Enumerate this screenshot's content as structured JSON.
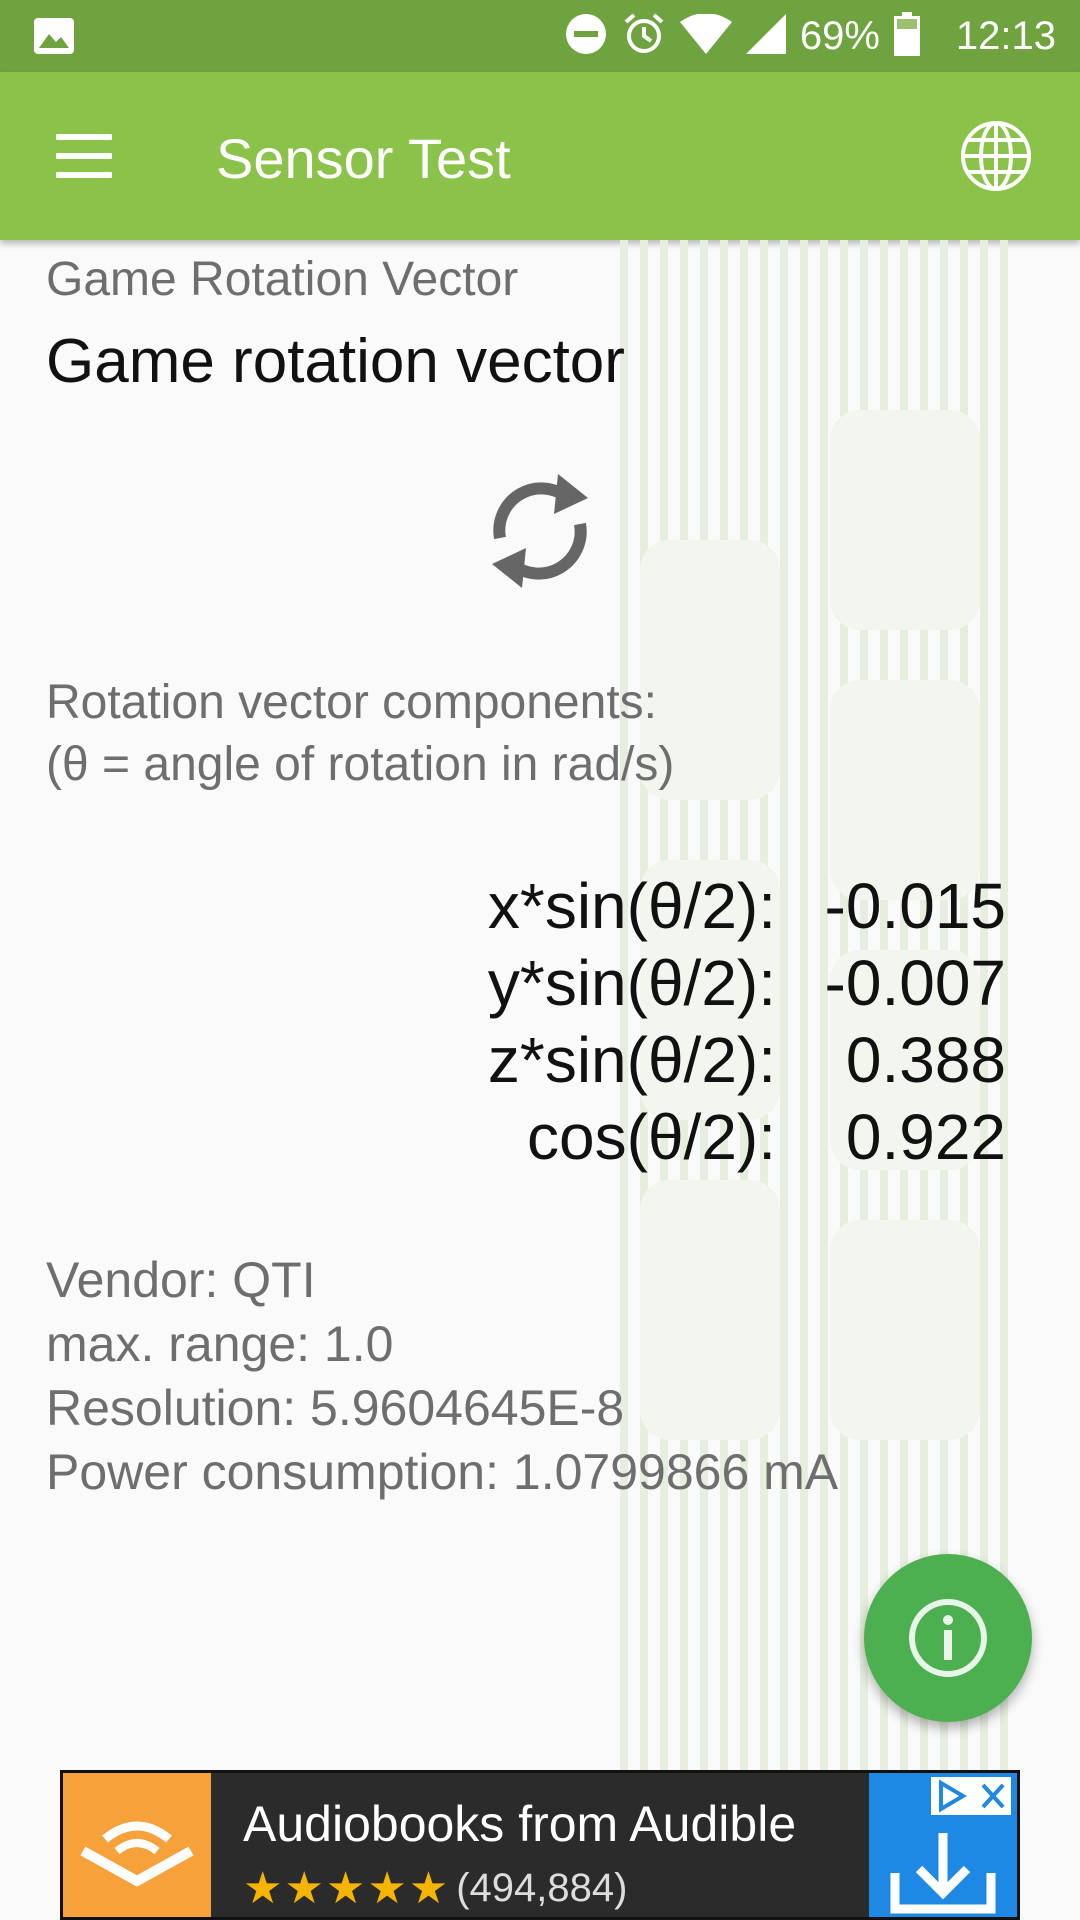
{
  "status_bar": {
    "battery_percent": "69%",
    "time": "12:13",
    "icons": [
      "image-icon",
      "do-not-disturb-icon",
      "alarm-icon",
      "wifi-icon",
      "signal-icon",
      "battery-icon"
    ]
  },
  "app_bar": {
    "title": "Sensor Test",
    "menu_icon": "hamburger-menu-icon",
    "action_icon": "globe-icon"
  },
  "sensor": {
    "type": "Game Rotation Vector",
    "name": "Game rotation vector",
    "description_line1": "Rotation vector components:",
    "description_line2": "(θ = angle of rotation in rad/s)",
    "components": [
      {
        "label": "x*sin(θ/2):",
        "value": "-0.015"
      },
      {
        "label": "y*sin(θ/2):",
        "value": "-0.007"
      },
      {
        "label": "z*sin(θ/2):",
        "value": "0.388"
      },
      {
        "label": "cos(θ/2):",
        "value": "0.922"
      }
    ],
    "info": {
      "vendor": "Vendor:  QTI",
      "max_range": "max. range:  1.0",
      "resolution": "Resolution:  5.9604645E-8",
      "power": "Power consumption:  1.0799866 mA"
    }
  },
  "fab": {
    "icon": "info-icon"
  },
  "ad": {
    "headline": "Audiobooks from Audible",
    "stars": "★★★★★",
    "rating_count": "(494,884)",
    "colors": {
      "logo_bg": "#f7a13b",
      "download_bg": "#1e88e5"
    }
  },
  "colors": {
    "status_bar": "#6ea33f",
    "app_bar": "#8bc34a",
    "fab": "#4caf50"
  }
}
